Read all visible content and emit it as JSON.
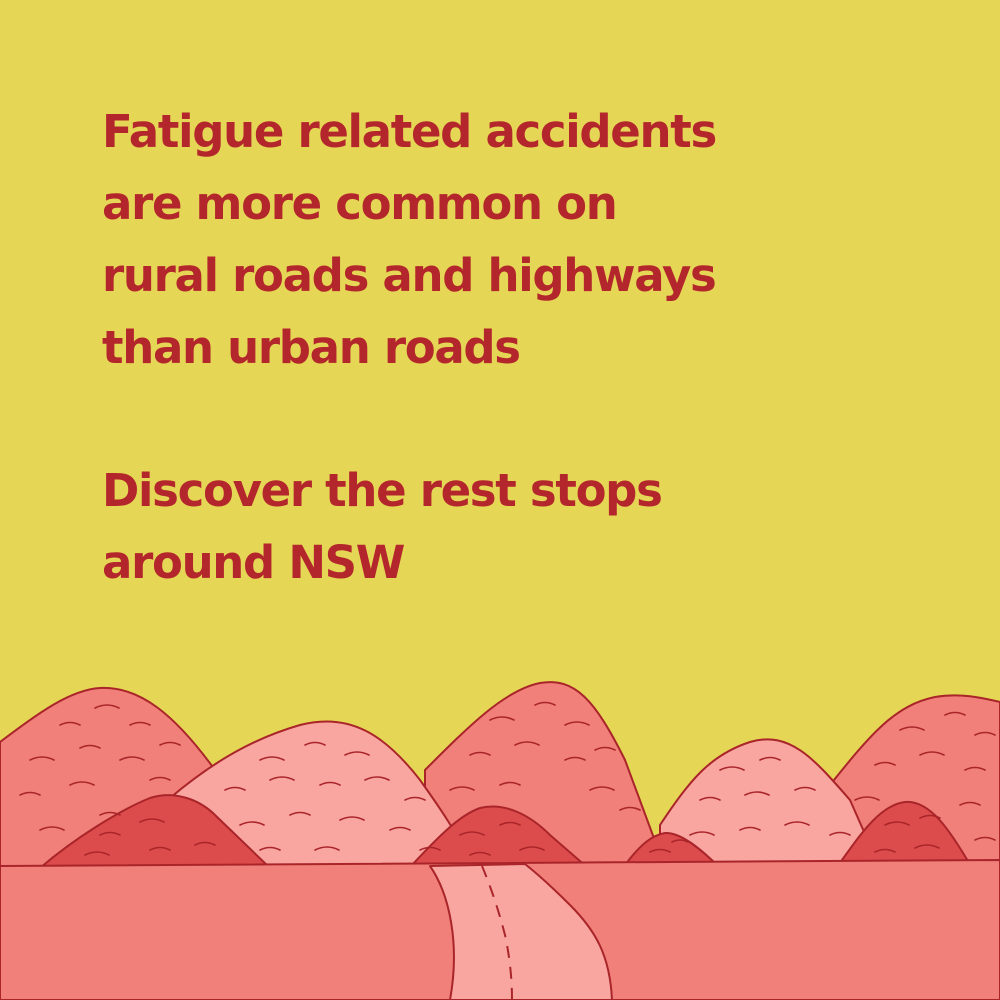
{
  "headline": {
    "lines": [
      "Fatigue related accidents",
      "are more common on",
      "rural roads and highways",
      "than urban roads"
    ]
  },
  "cta": {
    "lines": [
      "Discover the rest stops",
      "around NSW"
    ]
  },
  "illustration": {
    "subject": "rural-landscape-with-road",
    "colors": {
      "background": "#e6d655",
      "text": "#b3262c",
      "hill_back": "#f08079",
      "hill_light": "#f9a6a0",
      "hill_dark": "#dd4c4c",
      "ground": "#f08079",
      "road": "#f9a6a0",
      "outline": "#a9252a"
    }
  }
}
